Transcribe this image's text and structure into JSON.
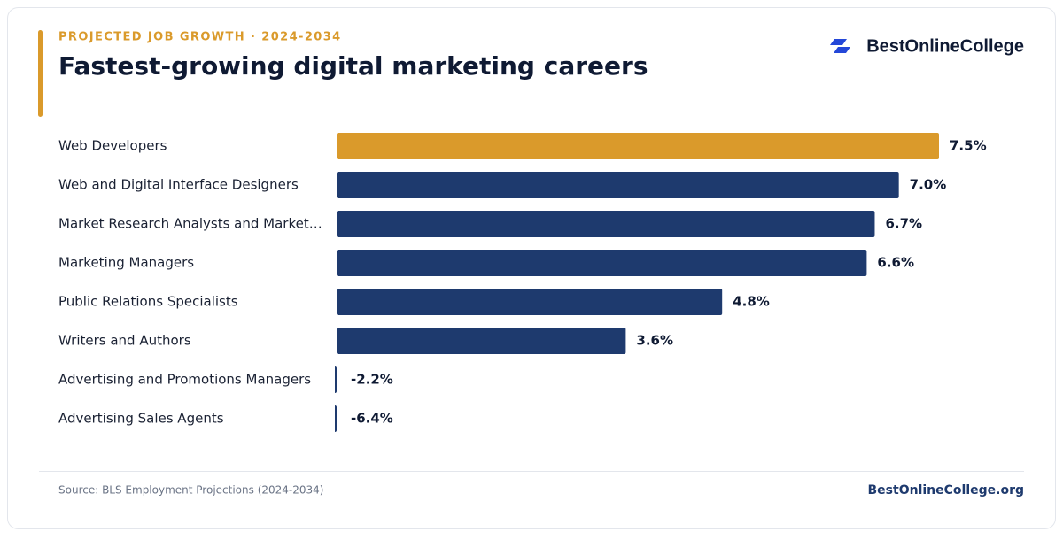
{
  "header": {
    "eyebrow": "PROJECTED JOB GROWTH · 2024-2034",
    "brand": "BestOnlineCollege"
  },
  "chart_data": {
    "type": "bar",
    "orientation": "horizontal",
    "title": "Fastest-growing digital marketing careers",
    "categories": [
      "Web Developers",
      "Web and Digital Interface Designers",
      "Market Research Analysts and Market…",
      "Marketing Managers",
      "Public Relations Specialists",
      "Writers and Authors",
      "Advertising and Promotions Managers",
      "Advertising Sales Agents"
    ],
    "values": [
      7.5,
      7.0,
      6.7,
      6.6,
      4.8,
      3.6,
      -2.2,
      -6.4
    ],
    "value_labels": [
      "7.5%",
      "7.0%",
      "6.7%",
      "6.6%",
      "4.8%",
      "3.6%",
      "-2.2%",
      "-6.4%"
    ],
    "colors": [
      "#da9a2b",
      "#1e3a6e",
      "#1e3a6e",
      "#1e3a6e",
      "#1e3a6e",
      "#1e3a6e",
      "#1e3a6e",
      "#1e3a6e"
    ],
    "xlim": [
      0,
      7.5
    ]
  },
  "footer": {
    "source": "Source: BLS Employment Projections (2024-2034)",
    "site": "BestOnlineCollege.org"
  }
}
